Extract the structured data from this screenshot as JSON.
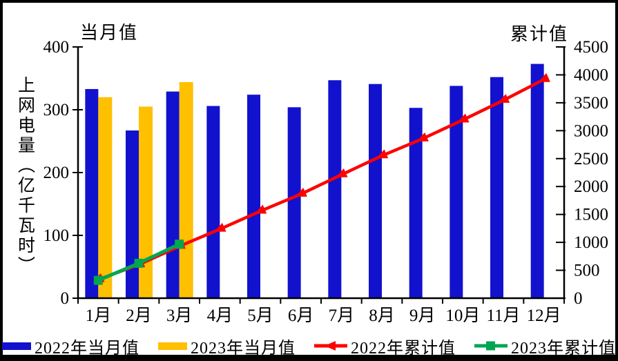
{
  "chart_data": {
    "type": "combo-bar-line",
    "categories": [
      "1月",
      "2月",
      "3月",
      "4月",
      "5月",
      "6月",
      "7月",
      "8月",
      "9月",
      "10月",
      "11月",
      "12月"
    ],
    "series": [
      {
        "name": "2022年当月值",
        "type": "bar",
        "axis": "left",
        "color": "#1212CE",
        "marker": "none",
        "values": [
          333,
          267,
          329,
          306,
          324,
          304,
          347,
          341,
          303,
          338,
          352,
          373
        ]
      },
      {
        "name": "2023年当月值",
        "type": "bar",
        "axis": "left",
        "color": "#FFC000",
        "marker": "none",
        "values": [
          320,
          305,
          344,
          null,
          null,
          null,
          null,
          null,
          null,
          null,
          null,
          null
        ]
      },
      {
        "name": "2022年累计值",
        "type": "line",
        "axis": "right",
        "color": "#FF0000",
        "marker": "triangle",
        "values": [
          333,
          600,
          929,
          1235,
          1559,
          1863,
          2210,
          2551,
          2854,
          3192,
          3544,
          3917
        ]
      },
      {
        "name": "2023年累计值",
        "type": "line",
        "axis": "right",
        "color": "#00A650",
        "marker": "square",
        "values": [
          320,
          625,
          969,
          null,
          null,
          null,
          null,
          null,
          null,
          null,
          null,
          null
        ]
      }
    ],
    "left_axis": {
      "title": "当月值",
      "unit_label": "上网电量（亿千瓦时）",
      "min": 0,
      "max": 400,
      "step": 100,
      "ticks": [
        "0",
        "100",
        "200",
        "300",
        "400"
      ]
    },
    "right_axis": {
      "title": "累计值",
      "min": 0,
      "max": 4500,
      "step": 500,
      "ticks": [
        "0",
        "500",
        "1000",
        "1500",
        "2000",
        "2500",
        "3000",
        "3500",
        "4000",
        "4500"
      ]
    },
    "grid": "off",
    "legend_position": "bottom",
    "axis_color": "#000000",
    "background_color": "#FFFFFF",
    "border_color": "#000000"
  }
}
